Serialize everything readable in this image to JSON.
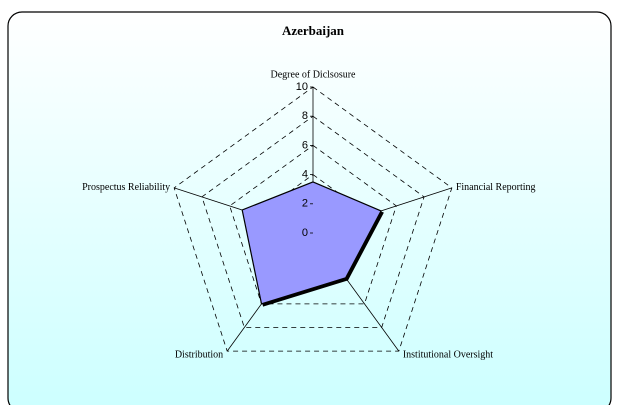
{
  "chart_data": {
    "type": "radar",
    "title": "Azerbaijan",
    "categories": [
      "Degree of Diclsosure",
      "Financial Reporting",
      "Institutional Oversight",
      "Distribution",
      "Prospectus Reliability"
    ],
    "values": [
      3.5,
      4.9,
      3.8,
      6,
      5.1
    ],
    "color": "#9999ff",
    "ylim": [
      0,
      10
    ],
    "yticks": [
      0,
      2,
      4,
      6,
      8,
      10
    ],
    "grid": true
  }
}
